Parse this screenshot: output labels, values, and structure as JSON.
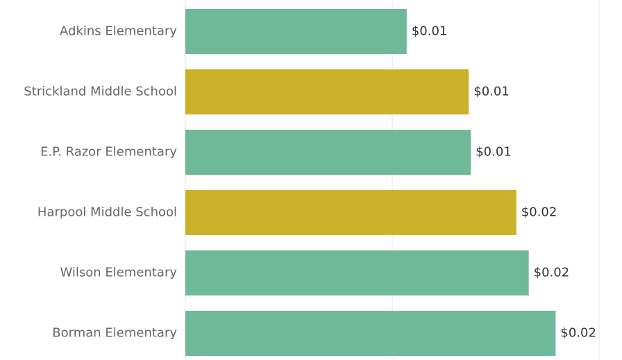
{
  "chart_data": {
    "type": "bar",
    "orientation": "horizontal",
    "categories": [
      "Adkins Elementary",
      "Strickland Middle School",
      "E.P. Razor Elementary",
      "Harpool Middle School",
      "Wilson Elementary",
      "Borman Elementary"
    ],
    "values": [
      0.0107,
      0.0137,
      0.0138,
      0.016,
      0.0166,
      0.0179
    ],
    "value_labels": [
      "$0.01",
      "$0.01",
      "$0.01",
      "$0.02",
      "$0.02",
      "$0.02"
    ],
    "colors": [
      "#6fb89a",
      "#cbb22a",
      "#6fb89a",
      "#cbb22a",
      "#6fb89a",
      "#6fb89a"
    ],
    "xlim": [
      0,
      0.02
    ],
    "xticks": [
      0,
      0.01,
      0.02
    ],
    "grid": true
  }
}
